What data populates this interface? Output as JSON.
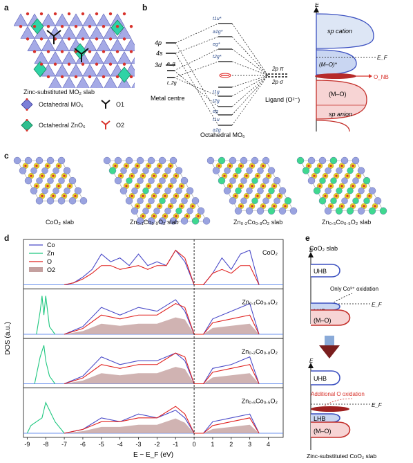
{
  "panel_labels": {
    "a": "a",
    "b": "b",
    "c": "c",
    "d": "d",
    "e": "e"
  },
  "panel_a": {
    "caption": "Zinc-substituted MO₂ slab",
    "legend": [
      {
        "label": "Octahedral MO₆",
        "color": "#7b7fd8"
      },
      {
        "label": "O1",
        "color": "#111111"
      },
      {
        "label": "Octahedral ZnO₆",
        "color": "#2fbf8f"
      },
      {
        "label": "O2",
        "color": "#d8322b"
      }
    ]
  },
  "panel_b": {
    "metal_levels": [
      "4p",
      "4s",
      "3d",
      "e_g",
      "t_2g"
    ],
    "mo_levels": [
      "t1u*",
      "a1g*",
      "eg*",
      "t2g*",
      "t1g",
      "t2g",
      "eg",
      "t1u",
      "a1g"
    ],
    "ligand_levels": [
      "2p π",
      "2p σ"
    ],
    "metal_label": "Metal centre",
    "mo_label": "Octahedral MO₆",
    "ligand_label": "Ligand (O²⁻)",
    "axis_label": "E",
    "bands": [
      {
        "label": "sp cation"
      },
      {
        "label": "(M–O)*"
      },
      {
        "label": "(M–O)"
      },
      {
        "label": "sp anion"
      }
    ],
    "fermi": "E_F",
    "onb": "O_NB"
  },
  "panel_c": {
    "slabs": [
      "CoO₂ slab",
      "Zn₀.₁Co₀.₉O₂ slab",
      "Zn₀.₂Co₀.₈O₂ slab",
      "Zn₀.₅Co₀.₅O₂ slab"
    ]
  },
  "panel_d": {
    "ylabel": "DOS (a.u.)",
    "xlabel": "E − E_F (eV)",
    "xticks": [
      "-9",
      "-8",
      "-7",
      "-6",
      "-5",
      "-4",
      "-3",
      "-2",
      "-1",
      "0",
      "1",
      "2",
      "3",
      "4"
    ],
    "legend": [
      {
        "label": "Co",
        "color": "#4a4ac8"
      },
      {
        "label": "Zn",
        "color": "#1ec77f"
      },
      {
        "label": "O",
        "color": "#e0201e"
      },
      {
        "label": "O2",
        "color": "#c4a09f"
      }
    ],
    "subpanels": [
      "CoO₂",
      "Zn₀.₁Co₀.₉O₂",
      "Zn₀.₂Co₀.₈O₂",
      "Zn₀.₅Co₀.₅O₂"
    ]
  },
  "panel_e": {
    "top_title": "CoO₂ slab",
    "top_labels": [
      "UHB",
      "Only Co³⁺ oxidation",
      "LHB",
      "(M–O)"
    ],
    "bottom_labels": [
      "UHB",
      "Additional O oxidation",
      "LHB",
      "(M–O)"
    ],
    "bottom_title": "Zinc-substituted CoO₂ slab",
    "axis_label": "E",
    "fermi": "E_F"
  },
  "chart_data": {
    "type": "line",
    "xlabel": "E − E_F (eV)",
    "ylabel": "DOS (a.u.)",
    "xlim": [
      -9.2,
      4.8
    ],
    "panels": [
      {
        "name": "CoO₂",
        "series": [
          {
            "name": "Co",
            "x": [
              -7,
              -6.5,
              -6,
              -5.5,
              -5,
              -4.5,
              -4,
              -3.5,
              -3,
              -2.5,
              -2,
              -1.5,
              -1,
              -0.5,
              0,
              0.5,
              1,
              1.5,
              2,
              2.5,
              3,
              3.5
            ],
            "values": [
              0,
              0.05,
              0.2,
              0.4,
              0.8,
              0.6,
              0.7,
              0.5,
              0.8,
              0.5,
              0.6,
              0.5,
              0.9,
              0.6,
              0,
              0,
              0.3,
              0.7,
              0.4,
              0.8,
              0.9,
              0
            ]
          },
          {
            "name": "O",
            "x": [
              -7,
              -6.5,
              -6,
              -5.5,
              -5,
              -4.5,
              -4,
              -3.5,
              -3,
              -2.5,
              -2,
              -1.5,
              -1,
              -0.5,
              0,
              0.5,
              1,
              1.5,
              2,
              2.5,
              3,
              3.5
            ],
            "values": [
              0,
              0.05,
              0.15,
              0.3,
              0.5,
              0.5,
              0.4,
              0.45,
              0.5,
              0.4,
              0.5,
              0.5,
              0.9,
              0.7,
              0,
              0,
              0.3,
              0.4,
              0.3,
              0.5,
              0.5,
              0
            ]
          }
        ]
      },
      {
        "name": "Zn₀.₁Co₀.₉O₂",
        "series": [
          {
            "name": "Zn",
            "x": [
              -8.5,
              -8.3,
              -8.2,
              -8.1,
              -8,
              -7.8,
              -7.5
            ],
            "values": [
              0,
              0.6,
              1,
              0.5,
              1,
              0.2,
              0
            ]
          },
          {
            "name": "Co",
            "x": [
              -7,
              -6,
              -5,
              -4,
              -3,
              -2,
              -1,
              -0.5,
              0,
              0.5,
              1,
              2,
              3,
              3.5
            ],
            "values": [
              0,
              0.2,
              0.7,
              0.5,
              0.7,
              0.6,
              0.9,
              0.6,
              0,
              0,
              0.4,
              0.6,
              0.8,
              0
            ]
          },
          {
            "name": "O",
            "x": [
              -7,
              -6,
              -5,
              -4,
              -3,
              -2,
              -1,
              -0.5,
              0,
              0.5,
              1,
              2,
              3,
              3.5
            ],
            "values": [
              0,
              0.15,
              0.5,
              0.4,
              0.5,
              0.5,
              0.8,
              0.7,
              0,
              0,
              0.3,
              0.4,
              0.5,
              0
            ]
          }
        ]
      },
      {
        "name": "Zn₀.₂Co₀.₈O₂",
        "series": [
          {
            "name": "Zn",
            "x": [
              -8.6,
              -8.3,
              -8.1,
              -8,
              -7.8,
              -7.5
            ],
            "values": [
              0,
              0.7,
              1,
              0.6,
              0.2,
              0
            ]
          },
          {
            "name": "Co",
            "x": [
              -7,
              -6,
              -5,
              -4,
              -3,
              -2,
              -1,
              -0.5,
              0,
              0.5,
              1,
              2,
              3,
              3.5
            ],
            "values": [
              0,
              0.2,
              0.7,
              0.5,
              0.6,
              0.6,
              0.8,
              0.6,
              0,
              0,
              0.4,
              0.5,
              0.7,
              0
            ]
          },
          {
            "name": "O",
            "x": [
              -7,
              -6,
              -5,
              -4,
              -3,
              -2,
              -1,
              -0.5,
              0,
              0.5,
              1,
              2,
              3,
              3.5
            ],
            "values": [
              0,
              0.15,
              0.5,
              0.4,
              0.5,
              0.5,
              0.8,
              0.7,
              0,
              0,
              0.3,
              0.4,
              0.5,
              0
            ]
          }
        ]
      },
      {
        "name": "Zn₀.₅Co₀.₅O₂",
        "series": [
          {
            "name": "Zn",
            "x": [
              -9,
              -8.8,
              -8.5,
              -8.2,
              -8,
              -7.8,
              -7.5,
              -7
            ],
            "values": [
              0,
              0.2,
              0.3,
              0.4,
              0.8,
              0.6,
              0.3,
              0
            ]
          },
          {
            "name": "Co",
            "x": [
              -7,
              -6,
              -5,
              -4,
              -3,
              -2,
              -1,
              -0.5,
              0,
              0.5,
              1,
              2,
              3,
              3.5
            ],
            "values": [
              0,
              0.1,
              0.4,
              0.3,
              0.5,
              0.4,
              0.6,
              0.4,
              0,
              0,
              0.3,
              0.4,
              0.5,
              0
            ]
          },
          {
            "name": "O",
            "x": [
              -7,
              -6,
              -5,
              -4,
              -3,
              -2,
              -1,
              -0.5,
              0,
              0.5,
              1,
              2,
              3,
              3.5
            ],
            "values": [
              0,
              0.1,
              0.3,
              0.3,
              0.4,
              0.4,
              0.7,
              0.5,
              0,
              0,
              0.2,
              0.3,
              0.4,
              0
            ]
          }
        ]
      }
    ]
  }
}
